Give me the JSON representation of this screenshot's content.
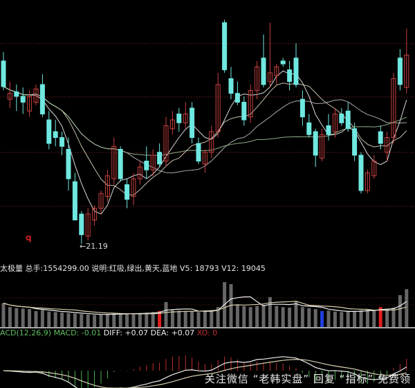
{
  "chart_data": [
    {
      "type": "candlestick",
      "panel": "price",
      "ylim": [
        21.0,
        29.0
      ],
      "grid": true,
      "up_color": "#c84040",
      "down_color": "#6fe8e0",
      "annotation_low": "21.19",
      "marker": "q",
      "ma_line_colors": [
        "#ffffff",
        "#e8e0c8",
        "#c8c8c8",
        "#a8c8a0"
      ],
      "candles": [
        [
          27.4,
          27.7,
          26.41,
          26.53
        ],
        [
          26.1,
          26.7,
          25.8,
          26.3
        ],
        [
          26.35,
          26.6,
          25.7,
          26.2
        ],
        [
          26.2,
          26.5,
          25.6,
          26.0
        ],
        [
          25.7,
          26.4,
          25.5,
          26.2
        ],
        [
          26.0,
          26.6,
          25.9,
          26.45
        ],
        [
          26.6,
          26.95,
          25.5,
          25.6
        ],
        [
          25.4,
          25.7,
          24.4,
          24.6
        ],
        [
          25.0,
          25.4,
          24.5,
          24.8
        ],
        [
          24.8,
          25.0,
          24.2,
          24.5
        ],
        [
          24.4,
          24.8,
          23.0,
          23.4
        ],
        [
          23.3,
          23.6,
          22.0,
          22.0
        ],
        [
          22.2,
          22.3,
          21.19,
          21.5
        ],
        [
          21.45,
          22.4,
          21.3,
          22.2
        ],
        [
          22.0,
          22.5,
          21.8,
          22.4
        ],
        [
          22.4,
          23.0,
          22.2,
          22.9
        ],
        [
          22.8,
          23.7,
          22.6,
          23.5
        ],
        [
          23.4,
          24.8,
          23.2,
          24.5
        ],
        [
          24.4,
          24.5,
          23.3,
          23.4
        ],
        [
          23.2,
          23.4,
          22.4,
          22.7
        ],
        [
          22.8,
          23.6,
          22.5,
          23.4
        ],
        [
          23.4,
          24.0,
          23.2,
          23.8
        ],
        [
          24.0,
          24.5,
          23.4,
          23.7
        ],
        [
          23.7,
          24.4,
          23.5,
          24.2
        ],
        [
          24.3,
          24.6,
          23.8,
          23.9
        ],
        [
          24.0,
          25.5,
          23.8,
          25.2
        ],
        [
          25.1,
          25.7,
          24.9,
          25.4
        ],
        [
          25.6,
          25.8,
          25.0,
          25.3
        ],
        [
          25.3,
          26.0,
          25.1,
          25.6
        ],
        [
          25.8,
          26.0,
          24.6,
          24.8
        ],
        [
          24.6,
          24.8,
          23.9,
          24.0
        ],
        [
          23.9,
          24.4,
          23.6,
          24.3
        ],
        [
          24.3,
          25.2,
          24.1,
          25.0
        ],
        [
          25.0,
          27.0,
          24.8,
          26.6
        ],
        [
          28.7,
          28.8,
          27.0,
          27.1
        ],
        [
          26.8,
          27.2,
          26.1,
          26.3
        ],
        [
          26.3,
          26.7,
          25.9,
          26.0
        ],
        [
          26.0,
          26.2,
          25.2,
          25.4
        ],
        [
          25.5,
          26.6,
          25.3,
          26.4
        ],
        [
          26.4,
          27.4,
          26.1,
          27.2
        ],
        [
          27.5,
          28.3,
          26.5,
          26.6
        ],
        [
          26.7,
          28.7,
          26.5,
          27.0
        ],
        [
          26.9,
          27.3,
          26.6,
          27.2
        ],
        [
          27.4,
          27.5,
          27.2,
          27.3
        ],
        [
          27.1,
          27.4,
          26.4,
          26.7
        ],
        [
          27.5,
          28.0,
          26.5,
          26.6
        ],
        [
          26.1,
          26.4,
          25.2,
          25.5
        ],
        [
          25.3,
          25.6,
          24.8,
          24.9
        ],
        [
          25.0,
          25.1,
          23.8,
          24.2
        ],
        [
          24.1,
          25.1,
          24.0,
          24.9
        ],
        [
          25.2,
          25.6,
          24.7,
          24.9
        ],
        [
          25.0,
          25.8,
          24.8,
          25.6
        ],
        [
          25.6,
          25.8,
          25.2,
          25.3
        ],
        [
          25.7,
          26.0,
          25.0,
          25.1
        ],
        [
          25.1,
          25.3,
          24.0,
          24.2
        ],
        [
          24.2,
          24.3,
          22.9,
          23.0
        ],
        [
          23.0,
          23.7,
          22.9,
          23.6
        ],
        [
          23.5,
          24.2,
          23.4,
          24.0
        ],
        [
          25.0,
          25.2,
          24.4,
          24.6
        ],
        [
          24.3,
          25.0,
          24.0,
          24.8
        ],
        [
          24.8,
          27.0,
          24.6,
          26.8
        ],
        [
          27.5,
          27.8,
          26.4,
          26.6
        ],
        [
          26.5,
          28.5,
          26.3,
          27.6
        ]
      ]
    },
    {
      "type": "bar",
      "panel": "volume",
      "ylim": [
        0,
        50000
      ],
      "bar_color": "#8a8a8a",
      "highlight_colors": {
        "red": "#e02020",
        "blue": "#2040e0"
      },
      "highlights": {
        "24": "red",
        "49": "blue",
        "58": "red"
      },
      "values": [
        24000,
        20000,
        19000,
        18500,
        18000,
        16000,
        17000,
        15500,
        15000,
        14500,
        14000,
        13500,
        13000,
        12500,
        12000,
        12500,
        13000,
        14000,
        13500,
        13000,
        13500,
        14000,
        14500,
        15000,
        16000,
        25000,
        17000,
        16500,
        16000,
        15500,
        15000,
        16000,
        17000,
        20000,
        45000,
        43000,
        22000,
        21000,
        20000,
        21000,
        22000,
        30000,
        21000,
        20000,
        19500,
        26000,
        20000,
        19000,
        18000,
        16000,
        16500,
        15500,
        15000,
        15500,
        16000,
        17000,
        18000,
        16500,
        20000,
        18000,
        19500,
        32000,
        38000
      ]
    },
    {
      "type": "bar+line",
      "panel": "macd",
      "params": "12,26,9",
      "up_color": "#c03030",
      "down_color": "#50b050"
    }
  ],
  "volume_legend": {
    "name": "太极量",
    "total_label": "总手:",
    "total_value": "1554299.00",
    "desc_label": "说明:",
    "desc_value": "红吸,绿出,黄天,蓝地",
    "v5": "V5: 18793",
    "v12": "V12: 19045"
  },
  "macd_legend": {
    "name": "ACD(12,26,9)",
    "macd": "MACD: -0.01",
    "diff": "DIFF: +0.07",
    "dea": "DEA: +0.07",
    "xo": "XO: 0"
  },
  "watermark": "关注微信 “老韩实盘” 回复 “指标” 免费领"
}
